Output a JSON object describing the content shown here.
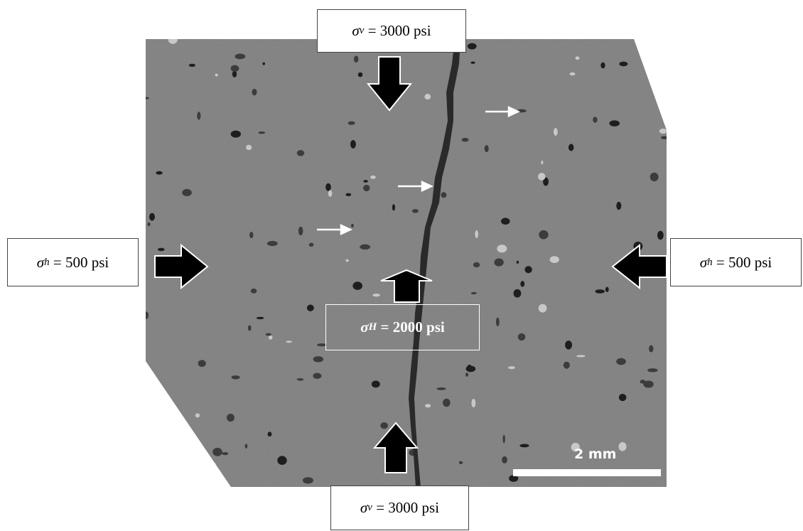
{
  "labels": {
    "top": {
      "symbol": "σ",
      "subscript": "v",
      "value": "= 3000 psi"
    },
    "bottom": {
      "symbol": "σ",
      "subscript": "v",
      "value": "= 3000 psi"
    },
    "left": {
      "symbol": "σ",
      "subscript": "h",
      "value": "= 500 psi"
    },
    "right": {
      "symbol": "σ",
      "subscript": "h",
      "value": "= 500 psi"
    },
    "center": {
      "symbol": "σ",
      "subscript": "H",
      "value": "= 2000 psi"
    }
  },
  "scale_bar": "2 mm"
}
